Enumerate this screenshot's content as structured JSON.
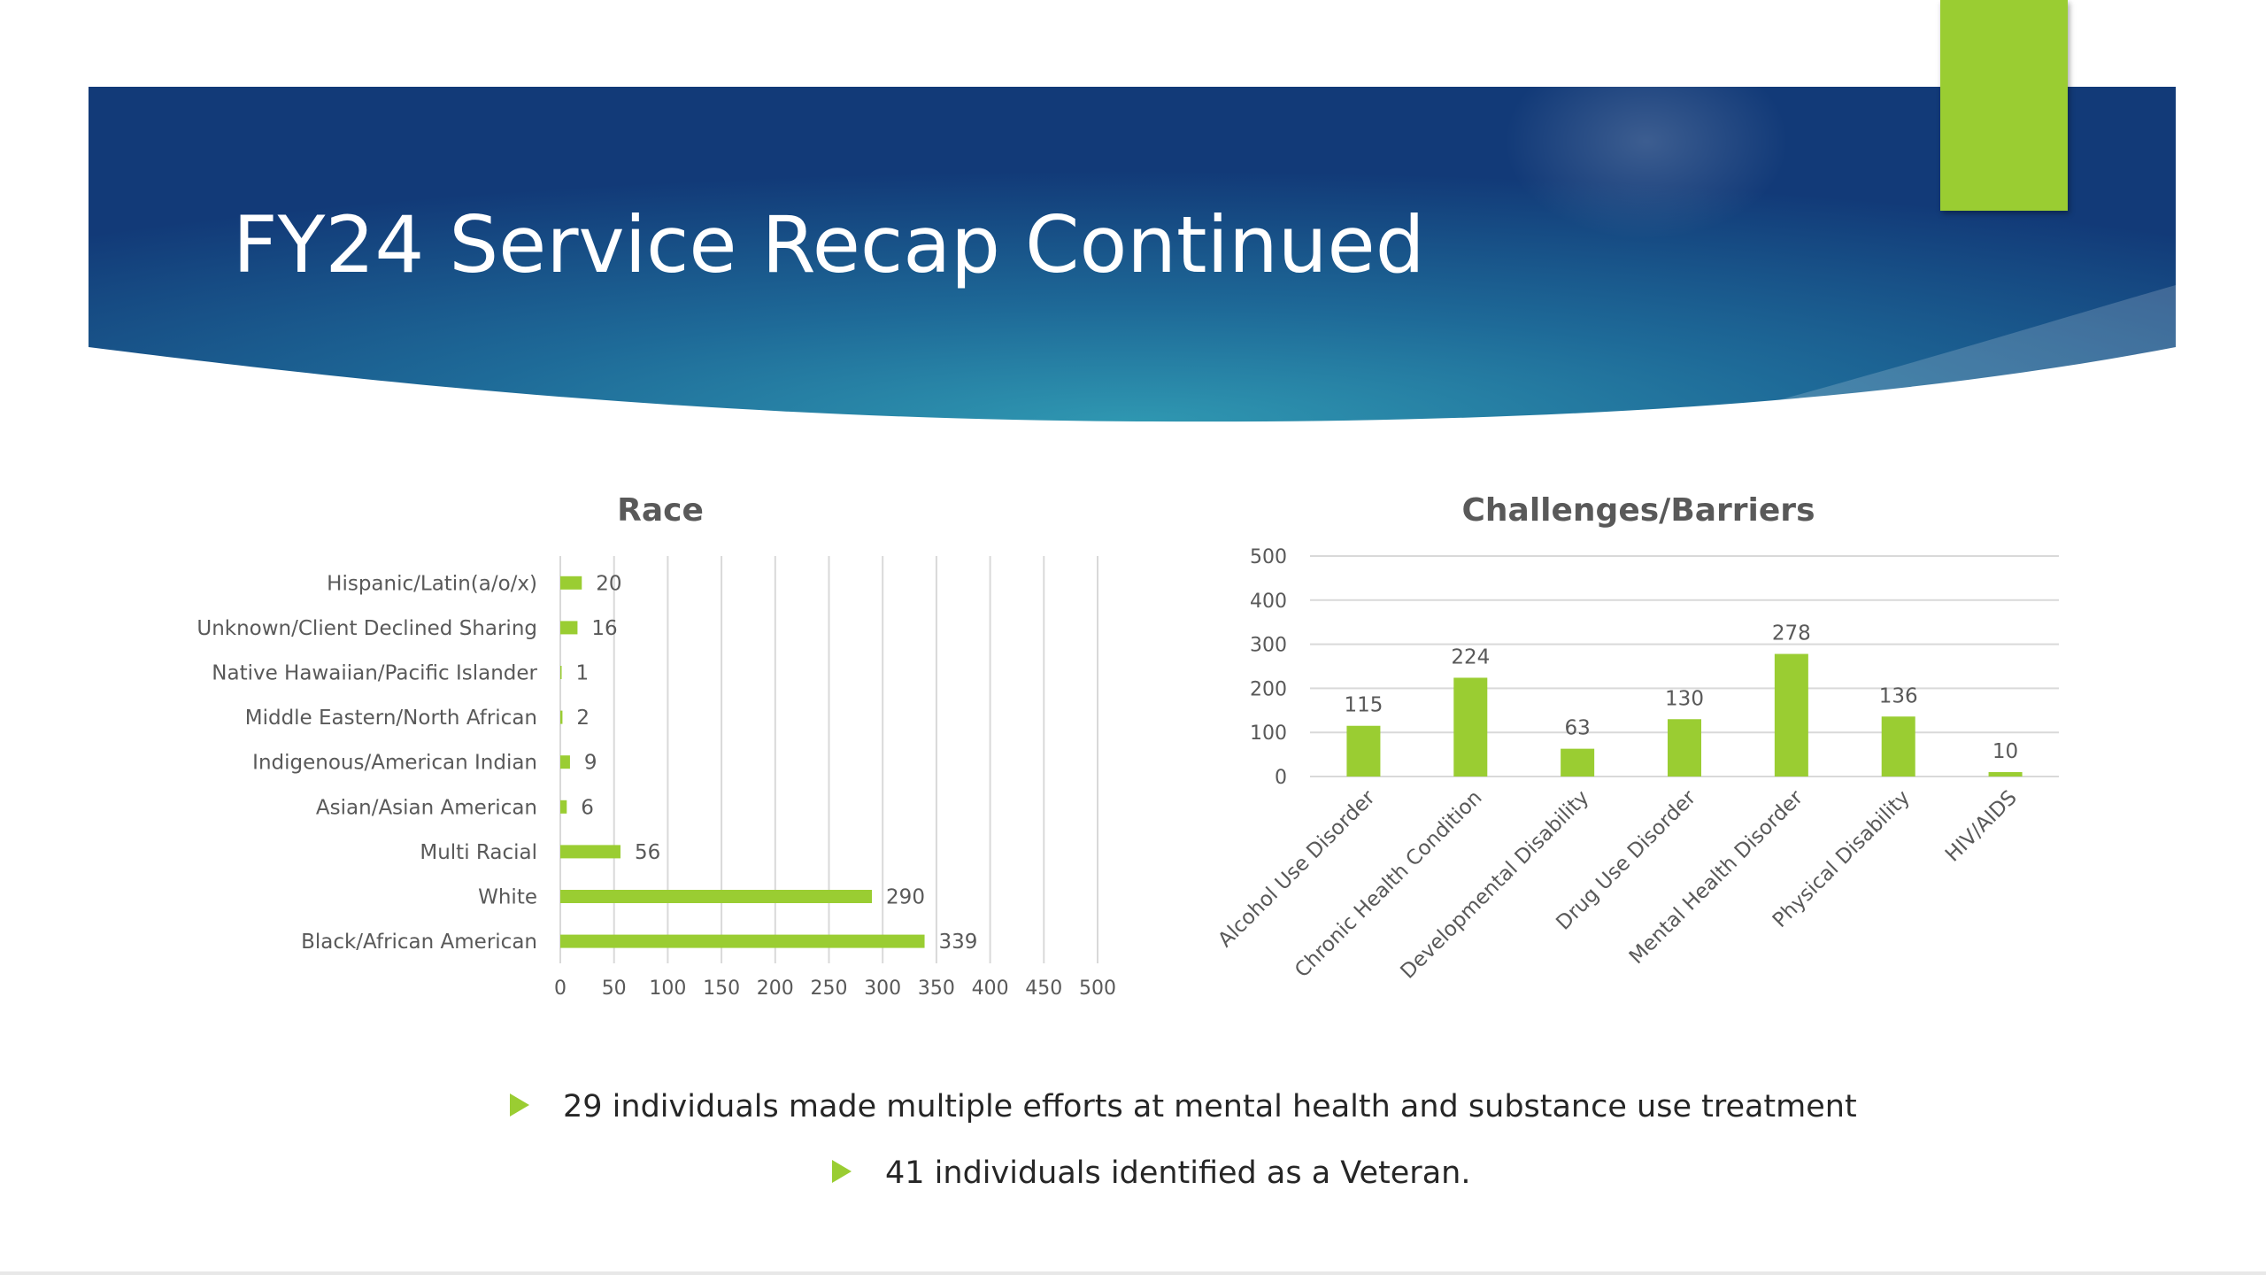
{
  "slide": {
    "title": "FY24 Service Recap Continued",
    "colors": {
      "accent": "#9acd32",
      "banner_dark": "#123a78",
      "banner_light": "#2a8fae",
      "text": "#404040"
    }
  },
  "chart_data": [
    {
      "type": "bar",
      "orientation": "horizontal",
      "title": "Race",
      "categories": [
        "Hispanic/Latin(a/o/x)",
        "Unknown/Client Declined Sharing",
        "Native Hawaiian/Pacific Islander",
        "Middle Eastern/North African",
        "Indigenous/American Indian",
        "Asian/Asian American",
        "Multi Racial",
        "White",
        "Black/African American"
      ],
      "values": [
        20,
        16,
        1,
        2,
        9,
        6,
        56,
        290,
        339
      ],
      "xlim": [
        0,
        500
      ],
      "xticks": [
        0,
        50,
        100,
        150,
        200,
        250,
        300,
        350,
        400,
        450,
        500
      ],
      "grid": "vertical",
      "color": "#9acd32",
      "data_labels": true
    },
    {
      "type": "bar",
      "orientation": "vertical",
      "title": "Challenges/Barriers",
      "categories": [
        "Alcohol Use Disorder",
        "Chronic Health Condition",
        "Developmental Disability",
        "Drug Use Disorder",
        "Mental Health Disorder",
        "Physical Disability",
        "HIV/AIDS"
      ],
      "values": [
        115,
        224,
        63,
        130,
        278,
        136,
        10
      ],
      "ylim": [
        0,
        500
      ],
      "yticks": [
        0,
        100,
        200,
        300,
        400,
        500
      ],
      "grid": "horizontal",
      "color": "#9acd32",
      "data_labels": true
    }
  ],
  "bullets": [
    "29 individuals made multiple efforts at mental health and substance use treatment",
    "41 individuals identified as a Veteran."
  ]
}
